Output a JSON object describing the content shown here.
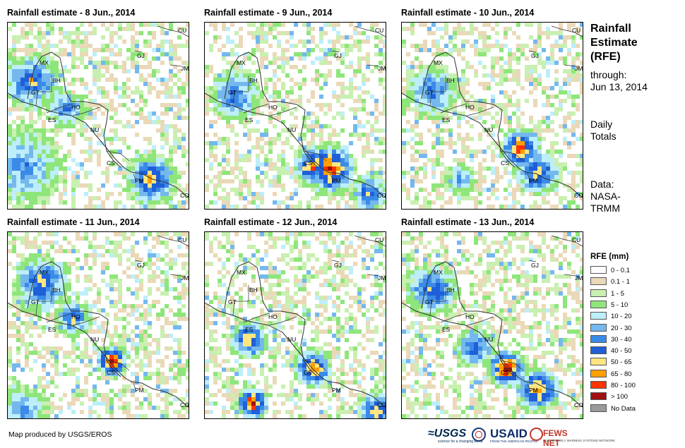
{
  "panels": [
    {
      "title": "Rainfall estimate - 8 Jun., 2014",
      "seed": 8
    },
    {
      "title": "Rainfall estimate - 9 Jun., 2014",
      "seed": 9
    },
    {
      "title": "Rainfall estimate - 10 Jun., 2014",
      "seed": 10
    },
    {
      "title": "Rainfall estimate - 11 Jun., 2014",
      "seed": 11
    },
    {
      "title": "Rainfall estimate - 12 Jun., 2014",
      "seed": 12
    },
    {
      "title": "Rainfall estimate - 13 Jun., 2014",
      "seed": 13
    }
  ],
  "country_labels": [
    "MX",
    "BH",
    "GT",
    "HO",
    "ES",
    "NU",
    "CS",
    "PM",
    "CO",
    "CU",
    "JM",
    "GJ"
  ],
  "sidebar": {
    "title_line1": "Rainfall",
    "title_line2": "Estimate",
    "title_line3": "(RFE)",
    "through_label": "through:",
    "through_date": "Jun 13, 2014",
    "totals_line1": "Daily",
    "totals_line2": "Totals",
    "data_label": "Data:",
    "data_source_line1": "NASA-",
    "data_source_line2": "TRMM"
  },
  "legend": {
    "title": "RFE (mm)",
    "items": [
      {
        "label": "0 - 0.1",
        "color": "#ffffff"
      },
      {
        "label": "0.1 - 1",
        "color": "#ead9b8"
      },
      {
        "label": "1 - 5",
        "color": "#c8f0b0"
      },
      {
        "label": "5 - 10",
        "color": "#8ee67a"
      },
      {
        "label": "10 - 20",
        "color": "#bdeefa"
      },
      {
        "label": "20 - 30",
        "color": "#74b8ee"
      },
      {
        "label": "30 - 40",
        "color": "#3a8ae8"
      },
      {
        "label": "40 - 50",
        "color": "#1f5fd8"
      },
      {
        "label": "50 - 65",
        "color": "#ffe680"
      },
      {
        "label": "65 - 80",
        "color": "#ff9f00"
      },
      {
        "label": "80 - 100",
        "color": "#ff3300"
      },
      {
        "label": "> 100",
        "color": "#a01010"
      },
      {
        "label": "No Data",
        "color": "#9a9a9a"
      }
    ]
  },
  "footer": {
    "credit": "Map produced by USGS/EROS",
    "logo_usgs": "≈USGS",
    "logo_usgs_tagline": "science for a changing world",
    "logo_usaid": "USAID",
    "logo_usaid_tagline": "FROM THE AMERICAN PEOPLE",
    "logo_fews": "FEWS NET",
    "logo_fews_tagline": "FAMINE EARLY WARNING SYSTEMS NETWORK"
  }
}
